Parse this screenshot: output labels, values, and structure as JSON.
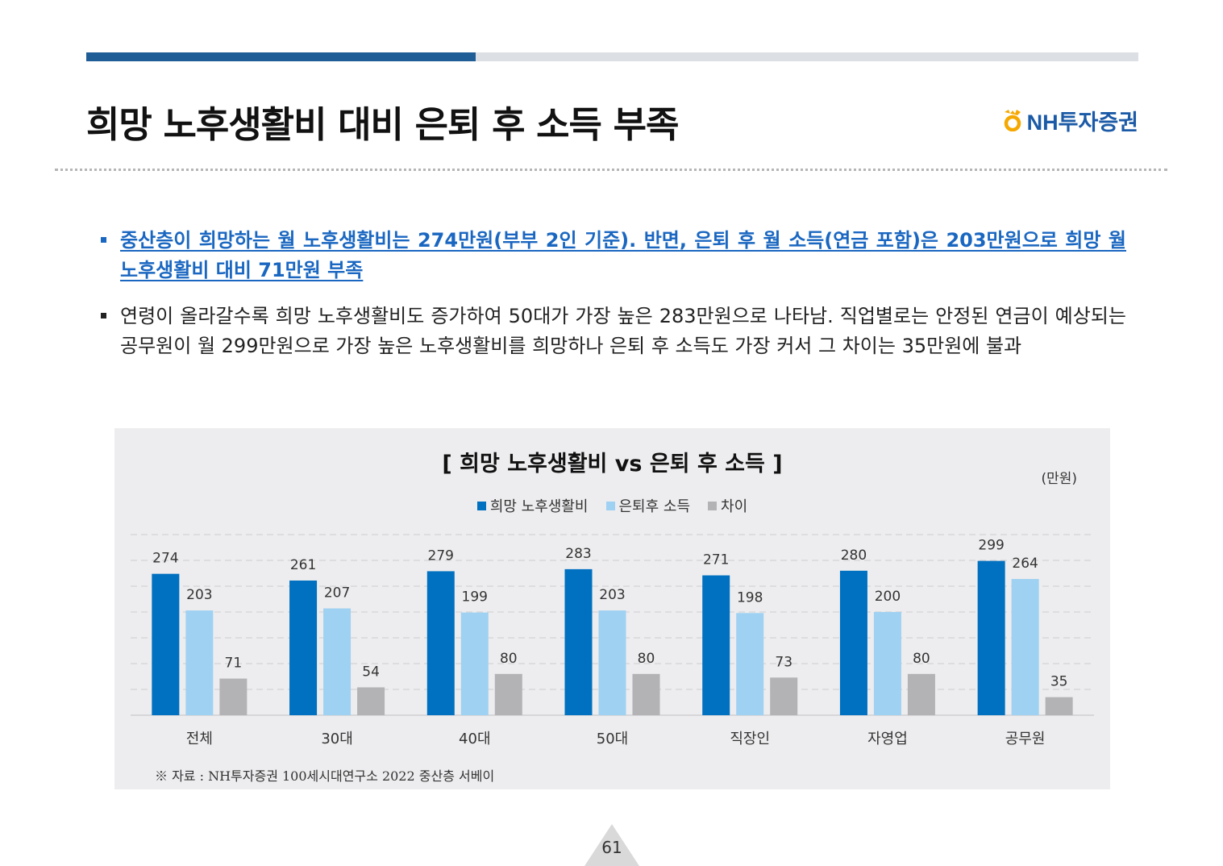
{
  "header": {
    "title": "희망 노후생활비 대비 은퇴 후 소득 부족",
    "logo_text": "NH투자증권",
    "accent_color": "#1f5d96"
  },
  "bullets": [
    {
      "text": "중산층이 희망하는 월 노후생활비는 274만원(부부 2인 기준). 반면, 은퇴 후 월 소득(연금 포함)은 203만원으로 희망 월 노후생활비 대비 71만원 부족",
      "style": "emphasis",
      "color": "#1a67c1"
    },
    {
      "text": "연령이 올라갈수록 희망 노후생활비도 증가하여 50대가 가장 높은 283만원으로 나타남. 직업별로는 안정된 연금이 예상되는 공무원이 월 299만원으로 가장 높은 노후생활비를 희망하나 은퇴 후 소득도 가장 커서 그 차이는 35만원에 불과",
      "style": "normal"
    }
  ],
  "chart": {
    "title": "[ 희망 노후생활비 vs 은퇴 후 소득 ]",
    "unit": "(만원)",
    "source": "※ 자료 : NH투자증권 100세시대연구소 2022 중산층 서베이"
  },
  "chart_data": {
    "type": "bar",
    "categories": [
      "전체",
      "30대",
      "40대",
      "50대",
      "직장인",
      "자영업",
      "공무원"
    ],
    "series": [
      {
        "name": "희망 노후생활비",
        "color": "#0070c0",
        "values": [
          274,
          261,
          279,
          283,
          271,
          280,
          299
        ]
      },
      {
        "name": "은퇴후 소득",
        "color": "#9fd1f2",
        "values": [
          203,
          207,
          199,
          203,
          198,
          200,
          264
        ]
      },
      {
        "name": "차이",
        "color": "#b3b3b5",
        "values": [
          71,
          54,
          80,
          80,
          73,
          80,
          35
        ]
      }
    ],
    "ylim": [
      0,
      350
    ],
    "grid": true,
    "legend_position": "top-center",
    "data_labels": true
  },
  "footer": {
    "page_number": "61"
  }
}
